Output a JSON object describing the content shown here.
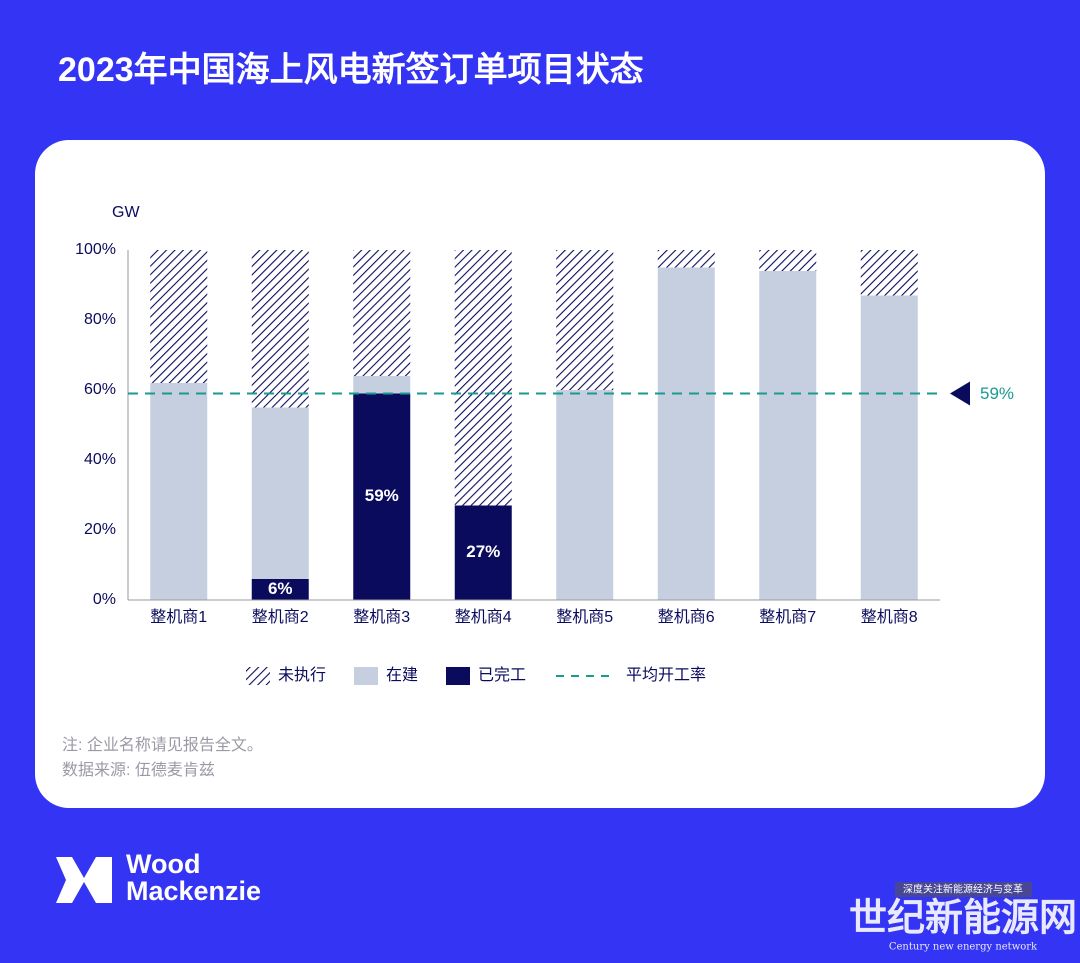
{
  "title": "2023年中国海上风电新签订单项目状态",
  "chart_data": {
    "type": "stacked_bar",
    "y_label": "GW",
    "categories": [
      "整机商1",
      "整机商2",
      "整机商3",
      "整机商4",
      "整机商5",
      "整机商6",
      "整机商7",
      "整机商8"
    ],
    "series": [
      {
        "name": "已完工",
        "color": "#0b0b5e",
        "values": [
          0,
          6,
          59,
          27,
          0,
          0,
          0,
          0
        ],
        "value_labels": [
          null,
          "6%",
          "59%",
          "27%",
          null,
          null,
          null,
          null
        ]
      },
      {
        "name": "在建",
        "color": "#c6cfe0",
        "values": [
          62,
          49,
          5,
          0,
          60,
          95,
          94,
          87
        ]
      },
      {
        "name": "未执行",
        "color": "#0b0b5e",
        "pattern": "hatch",
        "values": [
          38,
          45,
          36,
          73,
          40,
          5,
          6,
          13
        ]
      }
    ],
    "ylim": [
      0,
      100
    ],
    "yticks": [
      {
        "value": 0,
        "label": "0%"
      },
      {
        "value": 20,
        "label": "20%"
      },
      {
        "value": 40,
        "label": "40%"
      },
      {
        "value": 60,
        "label": "60%"
      },
      {
        "value": 80,
        "label": "80%"
      },
      {
        "value": 100,
        "label": "100%"
      }
    ],
    "average_line": {
      "name": "平均开工率",
      "value": 59,
      "label": "59%",
      "color": "#1a9a90"
    }
  },
  "notes": [
    "注: 企业名称请见报告全文。",
    "数据来源: 伍德麦肯兹"
  ],
  "logo": [
    "Wood",
    "Mackenzie"
  ],
  "watermark": {
    "tagline": "深度关注新能源经济与变革",
    "name": "世纪新能源网",
    "english": "Century new energy network"
  }
}
